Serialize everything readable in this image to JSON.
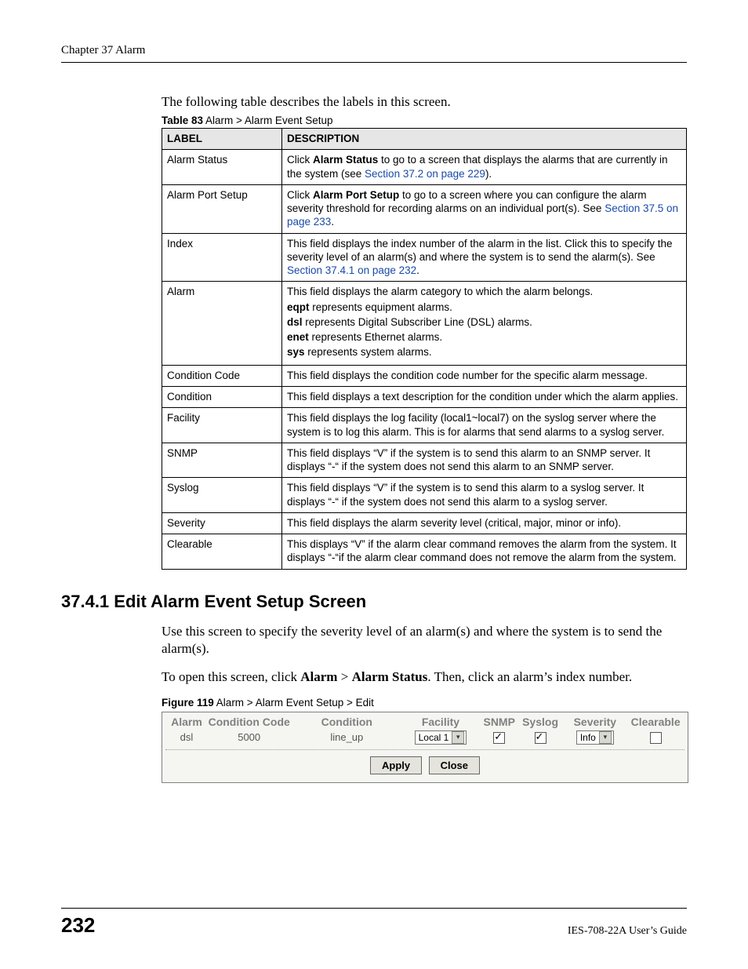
{
  "header": {
    "running": "Chapter 37 Alarm"
  },
  "intro": "The following table describes the labels in this screen.",
  "table": {
    "caption_bold": "Table 83",
    "caption_rest": "   Alarm > Alarm Event Setup",
    "head_label": "LABEL",
    "head_desc": "DESCRIPTION",
    "rows": {
      "r0": {
        "label": "Alarm Status",
        "pre": "Click ",
        "bold": "Alarm Status",
        "mid": " to go to a screen that displays the alarms that are currently in the system (see ",
        "link": "Section 37.2 on page 229",
        "post": ")."
      },
      "r1": {
        "label": "Alarm Port Setup",
        "pre": "Click ",
        "bold": "Alarm Port Setup",
        "mid": " to go to a screen where you can configure the alarm severity threshold for recording alarms on an individual port(s). See ",
        "link": "Section 37.5 on page 233",
        "post": "."
      },
      "r2": {
        "label": "Index",
        "pre": "This field displays the index number of the alarm in the list. Click this to specify the severity level of an alarm(s) and where the system is to send the alarm(s). See ",
        "link": "Section 37.4.1 on page 232",
        "post": "."
      },
      "r3": {
        "label": "Alarm",
        "l1": "This field displays the alarm category to which the alarm belongs.",
        "l2b": "eqpt",
        "l2": " represents equipment alarms.",
        "l3b": "dsl",
        "l3": " represents Digital Subscriber Line (DSL) alarms.",
        "l4b": "enet",
        "l4": " represents Ethernet alarms.",
        "l5b": "sys",
        "l5": " represents system alarms."
      },
      "r4": {
        "label": "Condition Code",
        "text": "This field displays the condition code number for the specific alarm message."
      },
      "r5": {
        "label": "Condition",
        "text": "This field displays a text description for the condition under which the alarm applies."
      },
      "r6": {
        "label": "Facility",
        "text": "This field displays the log facility (local1~local7) on the syslog server where the system is to log this alarm. This is for alarms that send alarms to a syslog server."
      },
      "r7": {
        "label": "SNMP",
        "text": "This field displays “V” if the system is to send this alarm to an SNMP server. It displays “-“ if the system does not send this alarm to an SNMP server."
      },
      "r8": {
        "label": "Syslog",
        "text": "This field displays “V” if the system is to send this alarm to a syslog server. It displays “-“ if the system does not send this alarm to a syslog server."
      },
      "r9": {
        "label": "Severity",
        "text": "This field displays the alarm severity level (critical, major, minor or info)."
      },
      "r10": {
        "label": "Clearable",
        "text": "This displays “V” if the alarm clear command removes the alarm from the system. It displays “-“if the alarm clear command does not remove the alarm from the system."
      }
    }
  },
  "section": {
    "num_title": "37.4.1  Edit Alarm Event Setup Screen",
    "p1": "Use this screen to specify the severity level of an alarm(s) and where the system is to send the alarm(s).",
    "p2_pre": "To open this screen, click ",
    "p2_b1": "Alarm",
    "p2_mid": " > ",
    "p2_b2": "Alarm Status",
    "p2_post": ". Then, click an alarm’s index number."
  },
  "figure": {
    "caption_bold": "Figure 119",
    "caption_rest": "   Alarm > Alarm Event Setup > Edit",
    "head": {
      "alarm": "Alarm",
      "cc": "Condition Code",
      "cond": "Condition",
      "fac": "Facility",
      "snmp": "SNMP",
      "syslog": "Syslog",
      "sev": "Severity",
      "clr": "Clearable"
    },
    "row": {
      "alarm": "dsl",
      "cc": "5000",
      "cond": "line_up",
      "fac_value": "Local 1",
      "snmp_checked": true,
      "syslog_checked": true,
      "sev_value": "Info",
      "clr_checked": false
    },
    "buttons": {
      "apply": "Apply",
      "close": "Close"
    }
  },
  "footer": {
    "page": "232",
    "guide": "IES-708-22A User’s Guide"
  }
}
